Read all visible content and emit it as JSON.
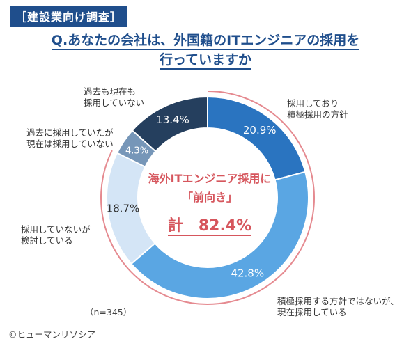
{
  "header": {
    "tag": "［建設業向け調査］",
    "question_line1": "Q.あなたの会社は、外国籍のITエンジニアの採用を",
    "question_line2": "行っていますか"
  },
  "center": {
    "line1": "海外ITエンジニア採用に",
    "line2": "「前向き」",
    "total": "計　82.4%"
  },
  "footer": {
    "n": "（n=345）",
    "copyright": "©ヒューマンリソシア"
  },
  "colors": {
    "accent": "#1f4e8c",
    "highlight": "#d6565d"
  },
  "chart_data": {
    "type": "pie",
    "donut": true,
    "categories": [
      "採用しており\n積極採用の方針",
      "積極採用する方針ではないが、\n現在採用している",
      "採用していないが\n検討している",
      "過去に採用していたが\n現在は採用していない",
      "過去も現在も\n採用していない"
    ],
    "values": [
      20.9,
      42.8,
      18.7,
      4.3,
      13.4
    ],
    "value_labels": [
      "20.9%",
      "42.8%",
      "18.7%",
      "4.3%",
      "13.4%"
    ],
    "colors": [
      "#2a74c0",
      "#5aa6e3",
      "#d4e5f6",
      "#7696b8",
      "#253f5e"
    ],
    "value_label_colors": [
      "#ffffff",
      "#ffffff",
      "#333333",
      "#ffffff",
      "#ffffff"
    ],
    "highlight_group": [
      "採用しており\n積極採用の方針",
      "積極採用する方針ではないが、\n現在採用している",
      "採用していないが\n検討している"
    ],
    "highlight_total": 82.4
  }
}
